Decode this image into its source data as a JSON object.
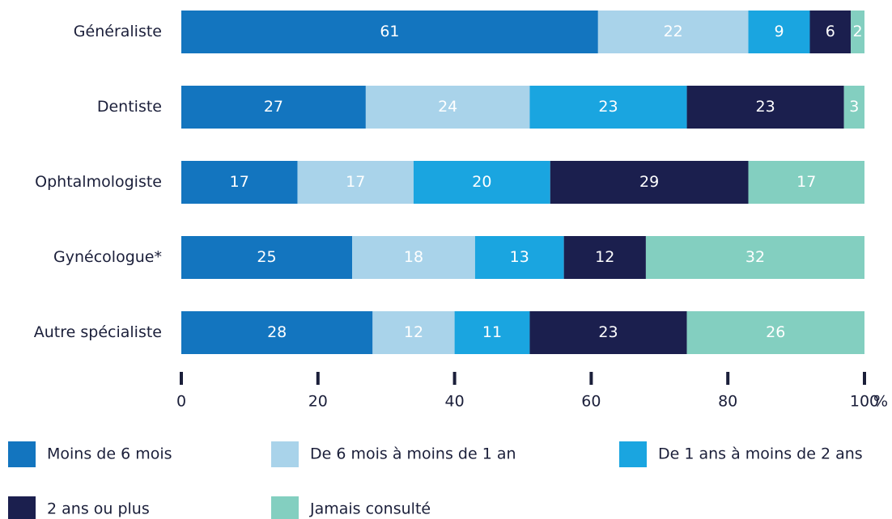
{
  "chart_data": {
    "type": "stacked_bar_horizontal",
    "categories": [
      "Généraliste",
      "Dentiste",
      "Ophtalmologiste",
      "Gynécologue*",
      "Autre spécialiste"
    ],
    "series": [
      {
        "name": "Moins de 6 mois",
        "color": "#1375bf",
        "values": [
          61,
          27,
          17,
          25,
          28
        ]
      },
      {
        "name": "De 6 mois à moins de 1 an",
        "color": "#a9d3ea",
        "values": [
          22,
          24,
          17,
          18,
          12
        ]
      },
      {
        "name": "De 1 ans à moins de 2 ans",
        "color": "#1aa5e0",
        "values": [
          9,
          23,
          20,
          13,
          11
        ]
      },
      {
        "name": "2 ans ou plus",
        "color": "#1b1f4e",
        "values": [
          6,
          23,
          29,
          12,
          23
        ]
      },
      {
        "name": "Jamais consulté",
        "color": "#83cfc0",
        "values": [
          2,
          3,
          17,
          32,
          26
        ]
      }
    ],
    "xlim": [
      0,
      100
    ],
    "xticks": [
      0,
      20,
      40,
      60,
      80,
      100
    ],
    "xunit": "%"
  }
}
